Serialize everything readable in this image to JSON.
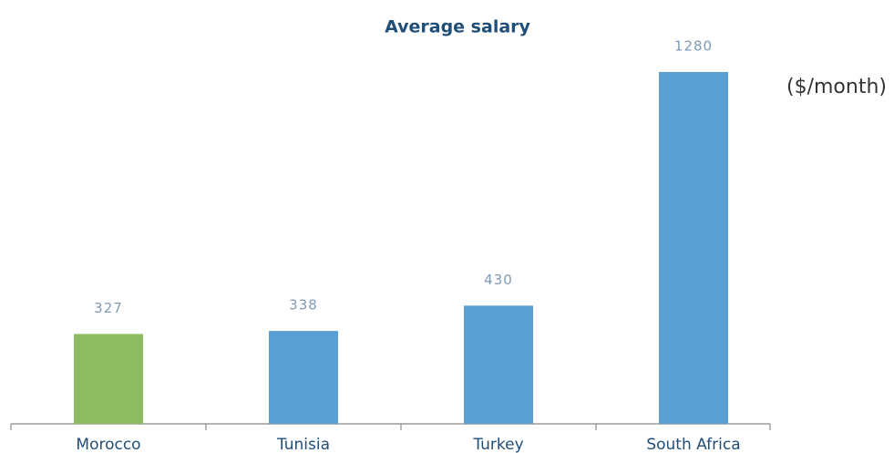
{
  "chart_data": {
    "type": "bar",
    "title": "Average salary",
    "y_label": "($/month)",
    "categories": [
      "Morocco",
      "Tunisia",
      "Turkey",
      "South Africa"
    ],
    "values": [
      327,
      338,
      430,
      1280
    ],
    "colors": [
      "#8fbc62",
      "#5a9fd4",
      "#5a9fd4",
      "#5a9fd4"
    ]
  }
}
